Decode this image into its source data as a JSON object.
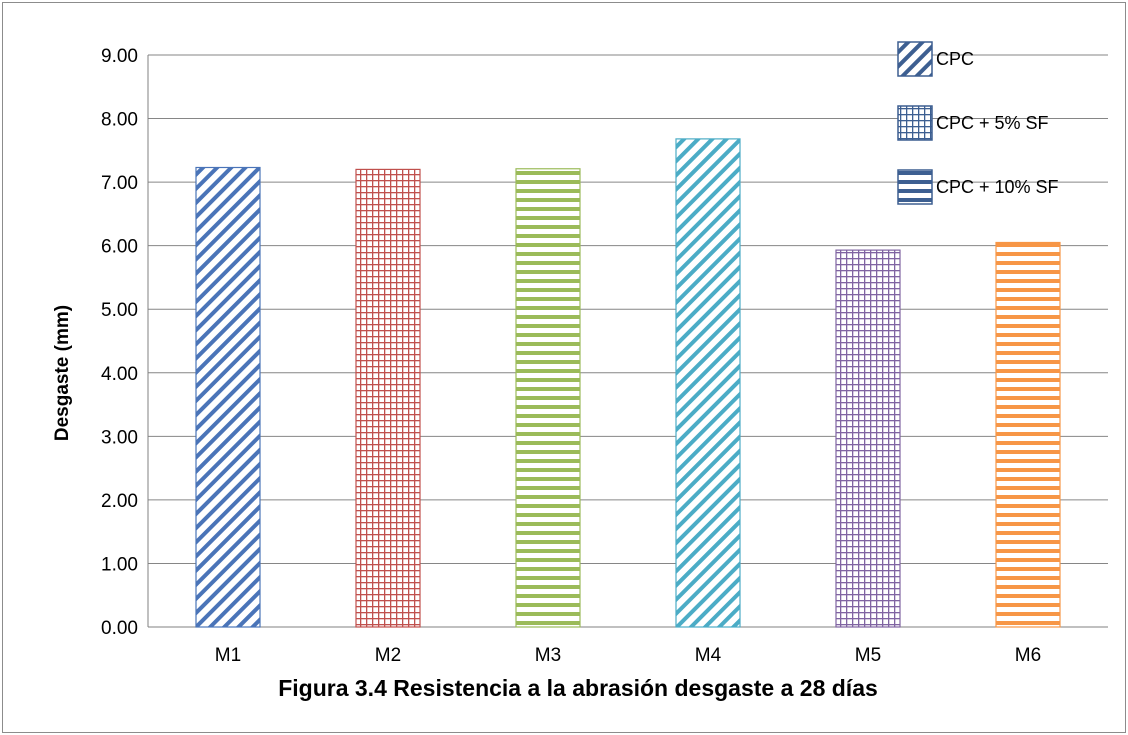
{
  "chart_data": {
    "type": "bar",
    "title": "Figura 3.4 Resistencia a la abrasión desgaste a 28 días",
    "xlabel": "",
    "ylabel": "Desgaste (mm)",
    "ylim": [
      0,
      9
    ],
    "y_tick_step": 1,
    "y_tick_labels": [
      "0.00",
      "1.00",
      "2.00",
      "3.00",
      "4.00",
      "5.00",
      "6.00",
      "7.00",
      "8.00",
      "9.00"
    ],
    "grid": true,
    "legend_position": "top-right",
    "categories": [
      "M1",
      "M2",
      "M3",
      "M4",
      "M5",
      "M6"
    ],
    "values": [
      7.23,
      7.2,
      7.21,
      7.68,
      5.93,
      6.05
    ],
    "bar_colors": [
      "#4a74b8",
      "#c0504d",
      "#9bbb59",
      "#4bacc6",
      "#8064a2",
      "#f79646"
    ],
    "bar_patterns": [
      "diagonal",
      "grid",
      "horizontal",
      "diagonal",
      "grid",
      "horizontal"
    ],
    "legend": [
      {
        "label": "CPC",
        "pattern": "diagonal",
        "color": "#3d5f91"
      },
      {
        "label": "CPC + 5% SF",
        "pattern": "grid",
        "color": "#3d5f91"
      },
      {
        "label": "CPC + 10% SF",
        "pattern": "horizontal",
        "color": "#3d5f91"
      }
    ]
  }
}
